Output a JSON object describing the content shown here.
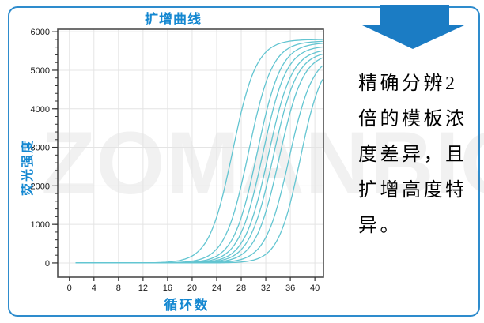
{
  "watermark": {
    "text": "ZOMANBIO"
  },
  "chart_data": {
    "type": "line",
    "title": "扩增曲线",
    "xlabel": "循环数",
    "ylabel": "荧光强度",
    "xlim": [
      -1.9,
      41.4
    ],
    "ylim": [
      -370,
      6065
    ],
    "x_ticks": [
      0,
      4,
      8,
      12,
      16,
      20,
      24,
      28,
      32,
      36,
      40
    ],
    "y_ticks": [
      0,
      1000,
      2000,
      3000,
      4000,
      5000,
      6000
    ],
    "y_minor_step": 200,
    "grid": true,
    "legend": "none",
    "curve_color": "#63c5d1",
    "frame_color": "#4d4d4d",
    "grid_color": "#e4e4e4",
    "tick_label_color": "#1a1a1a",
    "accent_color": "#1588d1",
    "series_note": "qPCR 2-fold dilution series, baseline 0 from cycle 1, logistic rise; values at cycle 40 approx 5790,5720,5640,5520,5420,5330,5170,4790,4270",
    "series": [
      {
        "name": "curve-1",
        "model": "logistic",
        "baseline": 0,
        "plateau": 5800,
        "midpoint": 26.6,
        "slope": 0.52,
        "x_start": 1,
        "x_end": 41.4
      },
      {
        "name": "curve-2",
        "model": "logistic",
        "baseline": 0,
        "plateau": 5760,
        "midpoint": 29.2,
        "slope": 0.52,
        "x_start": 1,
        "x_end": 41.4
      },
      {
        "name": "curve-3",
        "model": "logistic",
        "baseline": 0,
        "plateau": 5720,
        "midpoint": 30.6,
        "slope": 0.52,
        "x_start": 1,
        "x_end": 41.4
      },
      {
        "name": "curve-4",
        "model": "logistic",
        "baseline": 0,
        "plateau": 5640,
        "midpoint": 31.5,
        "slope": 0.52,
        "x_start": 1,
        "x_end": 41.4
      },
      {
        "name": "curve-5",
        "model": "logistic",
        "baseline": 0,
        "plateau": 5560,
        "midpoint": 32.4,
        "slope": 0.52,
        "x_start": 1,
        "x_end": 41.4
      },
      {
        "name": "curve-6",
        "model": "logistic",
        "baseline": 0,
        "plateau": 5500,
        "midpoint": 33.2,
        "slope": 0.52,
        "x_start": 1,
        "x_end": 41.4
      },
      {
        "name": "curve-7",
        "model": "logistic",
        "baseline": 0,
        "plateau": 5460,
        "midpoint": 34.2,
        "slope": 0.52,
        "x_start": 1,
        "x_end": 41.4
      },
      {
        "name": "curve-8",
        "model": "logistic",
        "baseline": 0,
        "plateau": 5420,
        "midpoint": 35.8,
        "slope": 0.52,
        "x_start": 1,
        "x_end": 41.4
      },
      {
        "name": "curve-9",
        "model": "logistic",
        "baseline": 0,
        "plateau": 5380,
        "midpoint": 37.6,
        "slope": 0.56,
        "x_start": 1,
        "x_end": 41.4
      }
    ]
  },
  "annotation": {
    "arrow_color": "#1b7cc4",
    "text": "精确分辨2倍的模板浓度差异，且扩增高度特异。",
    "lines": [
      "精确分辨2",
      "倍的模板浓",
      "度差异，且",
      "扩增高度特",
      "异。"
    ]
  }
}
